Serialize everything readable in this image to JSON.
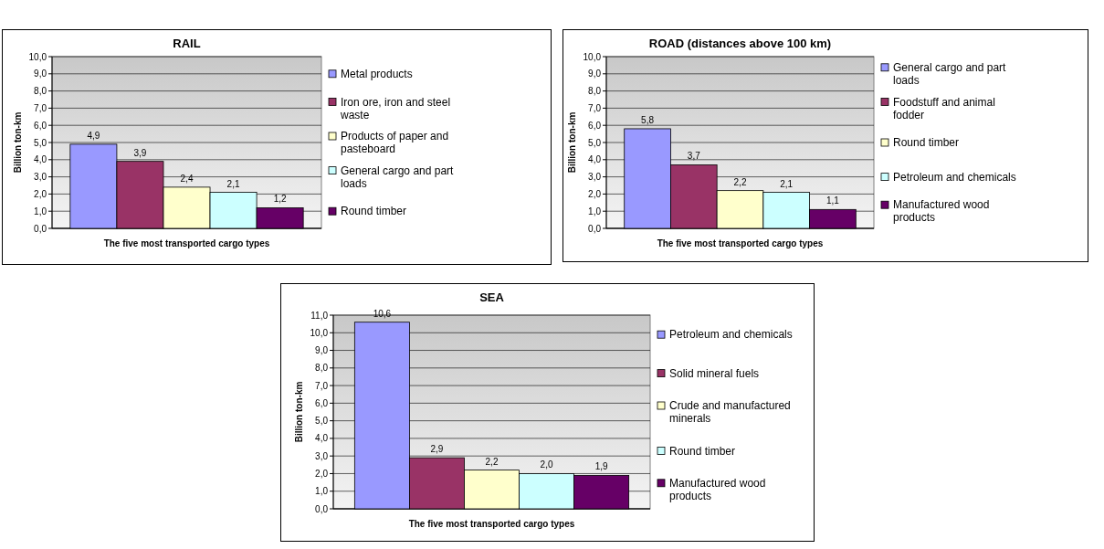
{
  "chart_data": [
    {
      "type": "bar",
      "title": "RAIL",
      "xlabel": "The five most transported cargo types",
      "ylabel": "Billion ton-km",
      "categories": [
        null
      ],
      "ylim": [
        0,
        10
      ],
      "yticks": [
        {
          "value": 0,
          "label": "0,0"
        },
        {
          "value": 1,
          "label": "1,0"
        },
        {
          "value": 2,
          "label": "2,0"
        },
        {
          "value": 3,
          "label": "3,0"
        },
        {
          "value": 4,
          "label": "4,0"
        },
        {
          "value": 5,
          "label": "5,0"
        },
        {
          "value": 6,
          "label": "6,0"
        },
        {
          "value": 7,
          "label": "7,0"
        },
        {
          "value": 8,
          "label": "8,0"
        },
        {
          "value": 9,
          "label": "9,0"
        },
        {
          "value": 10,
          "label": "10,0"
        }
      ],
      "grid": "y",
      "legend": "right",
      "series": [
        {
          "name": "Metal products",
          "color": "#9999ff",
          "values": [
            4.9
          ],
          "value_labels": [
            "4,9"
          ]
        },
        {
          "name": "Iron ore, iron and steel waste",
          "color": "#993366",
          "values": [
            3.9
          ],
          "value_labels": [
            "3,9"
          ]
        },
        {
          "name": "Products of paper and pasteboard",
          "color": "#ffffcc",
          "values": [
            2.4
          ],
          "value_labels": [
            "2,4"
          ]
        },
        {
          "name": "General cargo and part loads",
          "color": "#ccffff",
          "values": [
            2.1
          ],
          "value_labels": [
            "2,1"
          ]
        },
        {
          "name": "Round timber",
          "color": "#660066",
          "values": [
            1.2
          ],
          "value_labels": [
            "1,2"
          ]
        }
      ]
    },
    {
      "type": "bar",
      "title": "ROAD (distances above 100 km)",
      "xlabel": "The five most transported cargo types",
      "ylabel": "Billion ton-km",
      "categories": [
        null
      ],
      "ylim": [
        0,
        10
      ],
      "yticks": [
        {
          "value": 0,
          "label": "0,0"
        },
        {
          "value": 1,
          "label": "1,0"
        },
        {
          "value": 2,
          "label": "2,0"
        },
        {
          "value": 3,
          "label": "3,0"
        },
        {
          "value": 4,
          "label": "4,0"
        },
        {
          "value": 5,
          "label": "5,0"
        },
        {
          "value": 6,
          "label": "6,0"
        },
        {
          "value": 7,
          "label": "7,0"
        },
        {
          "value": 8,
          "label": "8,0"
        },
        {
          "value": 9,
          "label": "9,0"
        },
        {
          "value": 10,
          "label": "10,0"
        }
      ],
      "grid": "y",
      "legend": "right",
      "series": [
        {
          "name": "General cargo and part loads",
          "color": "#9999ff",
          "values": [
            5.8
          ],
          "value_labels": [
            "5,8"
          ]
        },
        {
          "name": "Foodstuff and animal fodder",
          "color": "#993366",
          "values": [
            3.7
          ],
          "value_labels": [
            "3,7"
          ]
        },
        {
          "name": "Round timber",
          "color": "#ffffcc",
          "values": [
            2.2
          ],
          "value_labels": [
            "2,2"
          ]
        },
        {
          "name": "Petroleum and chemicals",
          "color": "#ccffff",
          "values": [
            2.1
          ],
          "value_labels": [
            "2,1"
          ]
        },
        {
          "name": "Manufactured wood products",
          "color": "#660066",
          "values": [
            1.1
          ],
          "value_labels": [
            "1,1"
          ]
        }
      ]
    },
    {
      "type": "bar",
      "title": "SEA",
      "xlabel": "The five most transported cargo types",
      "ylabel": "Billion ton-km",
      "categories": [
        null
      ],
      "ylim": [
        0,
        11
      ],
      "yticks": [
        {
          "value": 0,
          "label": "0,0"
        },
        {
          "value": 1,
          "label": "1,0"
        },
        {
          "value": 2,
          "label": "2,0"
        },
        {
          "value": 3,
          "label": "3,0"
        },
        {
          "value": 4,
          "label": "4,0"
        },
        {
          "value": 5,
          "label": "5,0"
        },
        {
          "value": 6,
          "label": "6,0"
        },
        {
          "value": 7,
          "label": "7,0"
        },
        {
          "value": 8,
          "label": "8,0"
        },
        {
          "value": 9,
          "label": "9,0"
        },
        {
          "value": 10,
          "label": "10,0"
        },
        {
          "value": 11,
          "label": "11,0"
        }
      ],
      "grid": "y",
      "legend": "right",
      "series": [
        {
          "name": "Petroleum and chemicals",
          "color": "#9999ff",
          "values": [
            10.6
          ],
          "value_labels": [
            "10,6"
          ]
        },
        {
          "name": "Solid mineral fuels",
          "color": "#993366",
          "values": [
            2.9
          ],
          "value_labels": [
            "2,9"
          ]
        },
        {
          "name": "Crude and manufactured minerals",
          "color": "#ffffcc",
          "values": [
            2.2
          ],
          "value_labels": [
            "2,2"
          ]
        },
        {
          "name": "Round timber",
          "color": "#ccffff",
          "values": [
            2.0
          ],
          "value_labels": [
            "2,0"
          ]
        },
        {
          "name": "Manufactured wood products",
          "color": "#660066",
          "values": [
            1.9
          ],
          "value_labels": [
            "1,9"
          ]
        }
      ]
    }
  ]
}
